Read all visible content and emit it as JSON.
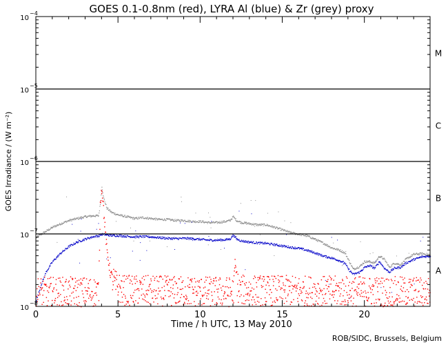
{
  "chart_data": {
    "type": "scatter",
    "title": "GOES 0.1-0.8nm (red), LYRA Al (blue) & Zr (grey) proxy",
    "xlabel": "Time / h UTC, 13 May 2010",
    "ylabel": "GOES Irradiance / (W m⁻²)",
    "xlim": [
      0,
      24
    ],
    "ylim": [
      1e-08,
      0.0001
    ],
    "yscale": "log",
    "x_ticks": [
      {
        "v": 0,
        "label": "0"
      },
      {
        "v": 5,
        "label": "5"
      },
      {
        "v": 10,
        "label": "10"
      },
      {
        "v": 15,
        "label": "15"
      },
      {
        "v": 20,
        "label": "20"
      }
    ],
    "y_ticks": [
      {
        "v": 1e-08,
        "base": "10",
        "exp": "−8"
      },
      {
        "v": 1e-07,
        "base": "10",
        "exp": "−7"
      },
      {
        "v": 1e-06,
        "base": "10",
        "exp": "−6"
      },
      {
        "v": 1e-05,
        "base": "10",
        "exp": "−5"
      },
      {
        "v": 0.0001,
        "base": "10",
        "exp": "−4"
      }
    ],
    "class_lines": [
      1e-07,
      1e-06,
      1e-05
    ],
    "flare_classes": [
      {
        "label": "A",
        "center": 3.16e-08
      },
      {
        "label": "B",
        "center": 3.16e-07
      },
      {
        "label": "C",
        "center": 3.16e-06
      },
      {
        "label": "M",
        "center": 3.16e-05
      }
    ],
    "series": [
      {
        "name": "LYRA Zr proxy",
        "color": "#8c8c8c",
        "points": [
          [
            0,
            9e-08
          ],
          [
            0.3,
            1e-07
          ],
          [
            0.6,
            1.1e-07
          ],
          [
            1,
            1.25e-07
          ],
          [
            1.5,
            1.4e-07
          ],
          [
            2,
            1.55e-07
          ],
          [
            2.5,
            1.65e-07
          ],
          [
            3,
            1.75e-07
          ],
          [
            3.5,
            1.8e-07
          ],
          [
            3.8,
            1.8e-07
          ],
          [
            3.9,
            2.6e-07
          ],
          [
            4.0,
            4.6e-07
          ],
          [
            4.1,
            3.2e-07
          ],
          [
            4.3,
            2.3e-07
          ],
          [
            4.6,
            2e-07
          ],
          [
            5,
            1.85e-07
          ],
          [
            5.5,
            1.75e-07
          ],
          [
            6,
            1.65e-07
          ],
          [
            6.5,
            1.7e-07
          ],
          [
            7,
            1.65e-07
          ],
          [
            7.5,
            1.6e-07
          ],
          [
            8,
            1.6e-07
          ],
          [
            8.5,
            1.55e-07
          ],
          [
            9,
            1.55e-07
          ],
          [
            9.5,
            1.5e-07
          ],
          [
            10,
            1.5e-07
          ],
          [
            10.5,
            1.45e-07
          ],
          [
            11,
            1.45e-07
          ],
          [
            11.5,
            1.5e-07
          ],
          [
            11.8,
            1.55e-07
          ],
          [
            12,
            1.75e-07
          ],
          [
            12.2,
            1.55e-07
          ],
          [
            12.5,
            1.45e-07
          ],
          [
            13,
            1.4e-07
          ],
          [
            13.5,
            1.35e-07
          ],
          [
            14,
            1.35e-07
          ],
          [
            14.5,
            1.25e-07
          ],
          [
            15,
            1.15e-07
          ],
          [
            15.5,
            1.05e-07
          ],
          [
            16,
            1e-07
          ],
          [
            16.5,
            9.5e-08
          ],
          [
            17,
            8.5e-08
          ],
          [
            17.5,
            7.5e-08
          ],
          [
            18,
            6.5e-08
          ],
          [
            18.5,
            6e-08
          ],
          [
            18.8,
            5.5e-08
          ],
          [
            19,
            4.5e-08
          ],
          [
            19.3,
            3.3e-08
          ],
          [
            19.7,
            3.6e-08
          ],
          [
            20,
            4.2e-08
          ],
          [
            20.3,
            4.2e-08
          ],
          [
            20.6,
            4e-08
          ],
          [
            20.9,
            5e-08
          ],
          [
            21.2,
            4.5e-08
          ],
          [
            21.5,
            3.5e-08
          ],
          [
            21.8,
            4e-08
          ],
          [
            22.2,
            3.8e-08
          ],
          [
            22.5,
            4.5e-08
          ],
          [
            23,
            5.3e-08
          ],
          [
            23.5,
            5.4e-08
          ],
          [
            24,
            5.2e-08
          ]
        ]
      },
      {
        "name": "LYRA Al proxy",
        "color": "#0000c8",
        "points": [
          [
            0,
            1.2e-08
          ],
          [
            0.3,
            2e-08
          ],
          [
            0.6,
            3e-08
          ],
          [
            1,
            4.2e-08
          ],
          [
            1.5,
            5.5e-08
          ],
          [
            2,
            6.8e-08
          ],
          [
            2.5,
            7.8e-08
          ],
          [
            3,
            8.6e-08
          ],
          [
            3.5,
            9.3e-08
          ],
          [
            3.8,
            9.5e-08
          ],
          [
            4.0,
            1e-07
          ],
          [
            4.3,
            9.8e-08
          ],
          [
            4.6,
            9.6e-08
          ],
          [
            5,
            9.6e-08
          ],
          [
            5.5,
            9.4e-08
          ],
          [
            6,
            9.2e-08
          ],
          [
            6.5,
            9.3e-08
          ],
          [
            7,
            9.2e-08
          ],
          [
            7.5,
            9e-08
          ],
          [
            8,
            8.8e-08
          ],
          [
            8.5,
            8.7e-08
          ],
          [
            9,
            8.8e-08
          ],
          [
            9.5,
            8.7e-08
          ],
          [
            10,
            8.5e-08
          ],
          [
            10.5,
            8.3e-08
          ],
          [
            11,
            8.3e-08
          ],
          [
            11.5,
            8.4e-08
          ],
          [
            11.8,
            8.6e-08
          ],
          [
            12,
            9.8e-08
          ],
          [
            12.2,
            8.6e-08
          ],
          [
            12.5,
            8.1e-08
          ],
          [
            13,
            7.8e-08
          ],
          [
            13.5,
            7.6e-08
          ],
          [
            14,
            7.5e-08
          ],
          [
            14.5,
            7.2e-08
          ],
          [
            15,
            6.9e-08
          ],
          [
            15.5,
            6.6e-08
          ],
          [
            16,
            6.4e-08
          ],
          [
            16.5,
            6e-08
          ],
          [
            17,
            5.5e-08
          ],
          [
            17.5,
            5e-08
          ],
          [
            18,
            4.7e-08
          ],
          [
            18.5,
            4.3e-08
          ],
          [
            18.8,
            4e-08
          ],
          [
            19,
            3.3e-08
          ],
          [
            19.3,
            2.8e-08
          ],
          [
            19.7,
            3e-08
          ],
          [
            20,
            3.5e-08
          ],
          [
            20.3,
            3.7e-08
          ],
          [
            20.6,
            3.4e-08
          ],
          [
            20.9,
            4.2e-08
          ],
          [
            21.2,
            3.4e-08
          ],
          [
            21.5,
            3e-08
          ],
          [
            21.8,
            3.4e-08
          ],
          [
            22.2,
            3.5e-08
          ],
          [
            22.5,
            4e-08
          ],
          [
            23,
            4.5e-08
          ],
          [
            23.5,
            4.9e-08
          ],
          [
            24,
            5e-08
          ]
        ]
      },
      {
        "name": "GOES 0.1-0.8nm",
        "color": "#ff0000",
        "baseline": [
          [
            0,
            1.6e-08
          ],
          [
            3.8,
            1.6e-08
          ],
          [
            3.9,
            3e-07
          ],
          [
            4.0,
            4.4e-07
          ],
          [
            4.15,
            1.5e-07
          ],
          [
            4.3,
            6e-08
          ],
          [
            4.5,
            3e-08
          ],
          [
            4.8,
            2e-08
          ],
          [
            5.2,
            1.7e-08
          ],
          [
            12.0,
            1.6e-08
          ],
          [
            12.1,
            4e-08
          ],
          [
            12.3,
            1.7e-08
          ],
          [
            24,
            1.6e-08
          ]
        ]
      }
    ],
    "credit": "ROB/SIDC, Brussels, Belgium"
  }
}
